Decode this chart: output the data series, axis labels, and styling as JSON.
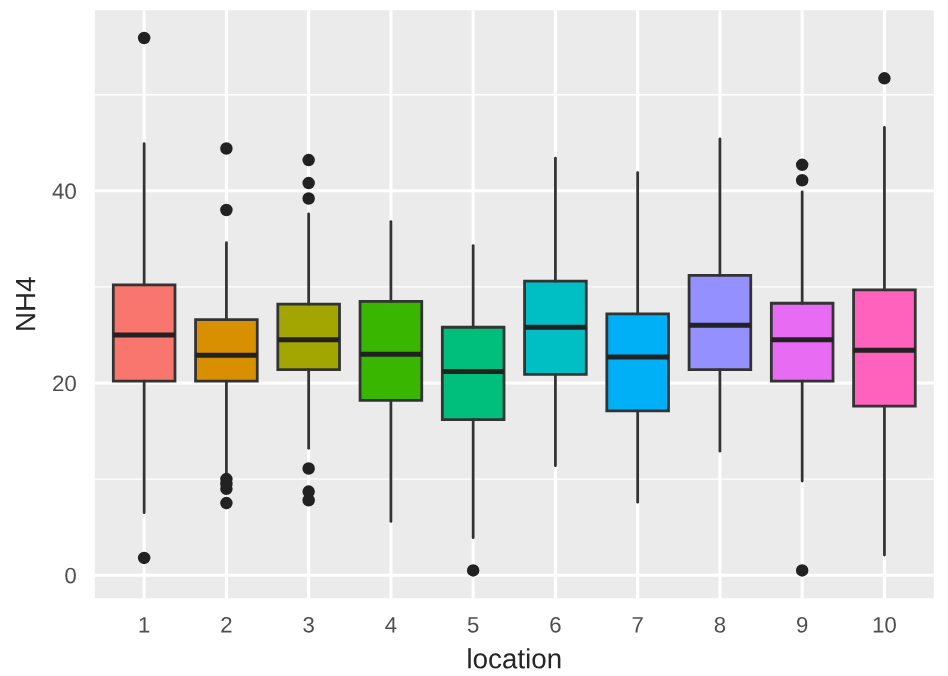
{
  "chart_data": {
    "type": "box",
    "xlabel": "location",
    "ylabel": "NH4",
    "categories": [
      "1",
      "2",
      "3",
      "4",
      "5",
      "6",
      "7",
      "8",
      "9",
      "10"
    ],
    "colors": [
      "#f8766d",
      "#d89000",
      "#a3a500",
      "#39b600",
      "#00bf7d",
      "#00bfc4",
      "#00b0f6",
      "#9590ff",
      "#e76bf3",
      "#ff62bc"
    ],
    "boxes": [
      {
        "low": 6.5,
        "q1": 20.2,
        "median": 25.0,
        "q3": 30.2,
        "high": 44.9,
        "outliers": [
          55.9,
          1.8
        ]
      },
      {
        "low": 10.5,
        "q1": 20.2,
        "median": 22.9,
        "q3": 26.6,
        "high": 34.6,
        "outliers": [
          44.4,
          38.0,
          10.0,
          9.5,
          9.0,
          7.5
        ]
      },
      {
        "low": 13.2,
        "q1": 21.4,
        "median": 24.5,
        "q3": 28.2,
        "high": 37.6,
        "outliers": [
          43.2,
          40.8,
          39.2,
          11.1,
          8.7,
          7.8
        ]
      },
      {
        "low": 5.6,
        "q1": 18.2,
        "median": 23.0,
        "q3": 28.5,
        "high": 36.8
      },
      {
        "low": 3.9,
        "q1": 16.2,
        "median": 21.2,
        "q3": 25.8,
        "high": 34.3,
        "outliers": [
          0.5
        ]
      },
      {
        "low": 11.4,
        "q1": 20.9,
        "median": 25.8,
        "q3": 30.6,
        "high": 43.4
      },
      {
        "low": 7.6,
        "q1": 17.1,
        "median": 22.7,
        "q3": 27.2,
        "high": 41.9
      },
      {
        "low": 12.9,
        "q1": 21.4,
        "median": 26.0,
        "q3": 31.2,
        "high": 45.4
      },
      {
        "low": 9.8,
        "q1": 20.2,
        "median": 24.5,
        "q3": 28.3,
        "high": 39.9,
        "outliers": [
          42.7,
          41.1,
          0.5
        ]
      },
      {
        "low": 2.1,
        "q1": 17.6,
        "median": 23.4,
        "q3": 29.7,
        "high": 46.6,
        "outliers": [
          51.7
        ]
      }
    ],
    "ylim": [
      -2.4,
      58.8
    ],
    "yticks": [
      0,
      20,
      40
    ],
    "grid": true
  }
}
